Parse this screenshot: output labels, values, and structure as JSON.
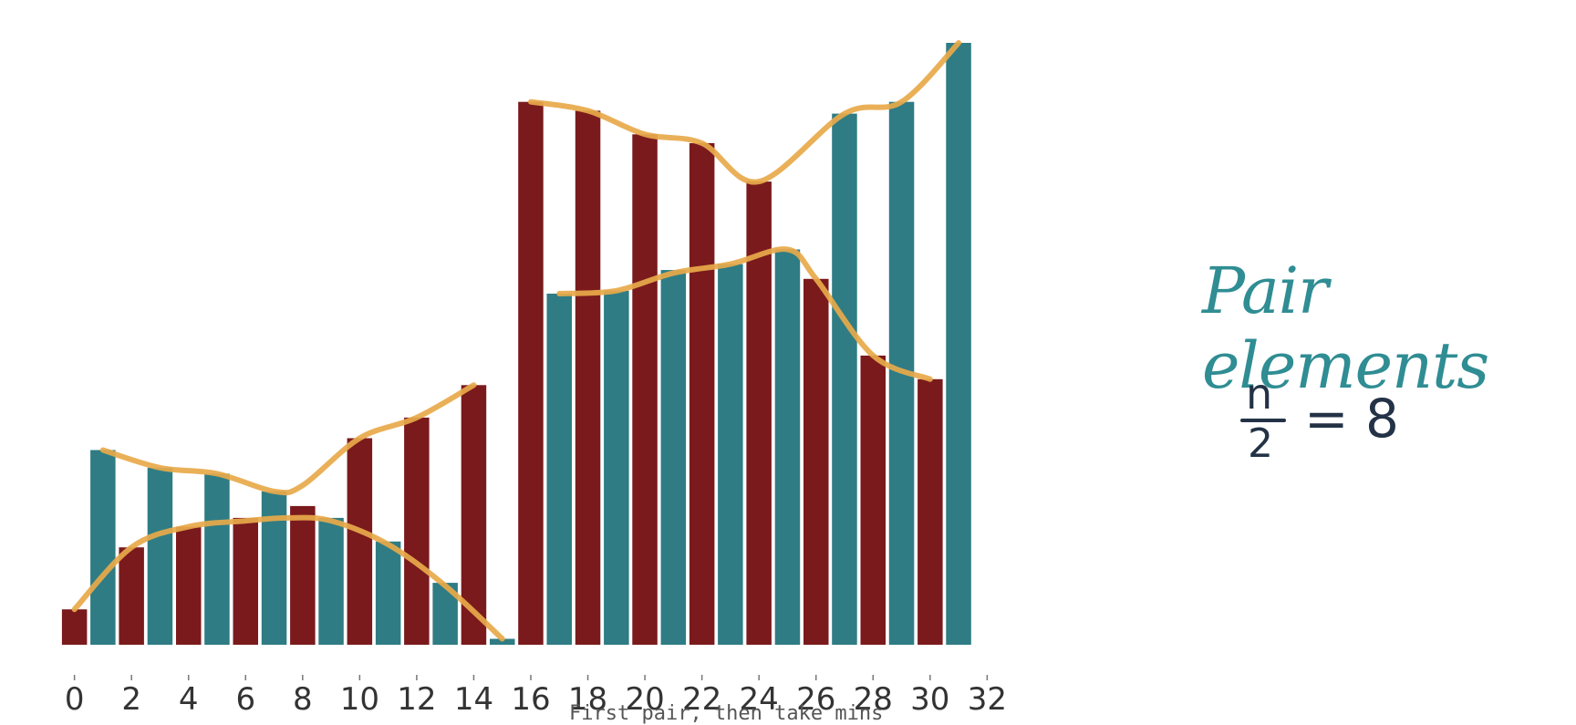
{
  "chart_data": {
    "type": "bar",
    "x": [
      0,
      1,
      2,
      3,
      4,
      5,
      6,
      7,
      8,
      9,
      10,
      11,
      12,
      13,
      14,
      15,
      16,
      17,
      18,
      19,
      20,
      21,
      22,
      23,
      24,
      25,
      26,
      27,
      28,
      29,
      30,
      31
    ],
    "values": [
      6,
      33,
      16.5,
      30,
      20,
      29,
      21.5,
      26,
      23.5,
      21.5,
      35,
      17.5,
      38.5,
      10.5,
      44,
      1,
      92,
      59.5,
      90.5,
      60,
      86.5,
      63.5,
      85,
      64.5,
      78.5,
      67,
      62,
      90,
      49,
      92,
      45,
      102
    ],
    "bar_colors": [
      "#7a1a1c",
      "#2f7c84",
      "#7a1a1c",
      "#2f7c84",
      "#7a1a1c",
      "#2f7c84",
      "#7a1a1c",
      "#2f7c84",
      "#7a1a1c",
      "#2f7c84",
      "#7a1a1c",
      "#2f7c84",
      "#7a1a1c",
      "#2f7c84",
      "#7a1a1c",
      "#2f7c84",
      "#7a1a1c",
      "#2f7c84",
      "#7a1a1c",
      "#2f7c84",
      "#7a1a1c",
      "#2f7c84",
      "#7a1a1c",
      "#2f7c84",
      "#7a1a1c",
      "#2f7c84",
      "#7a1a1c",
      "#2f7c84",
      "#7a1a1c",
      "#2f7c84",
      "#7a1a1c",
      "#2f7c84"
    ],
    "xticks": [
      0,
      2,
      4,
      6,
      8,
      10,
      12,
      14,
      16,
      18,
      20,
      22,
      24,
      26,
      28,
      30,
      32
    ],
    "xlim": [
      -0.5,
      32.5
    ],
    "ylim": [
      0,
      102
    ],
    "grid": false,
    "annotation_curves": [
      {
        "color": "#e8a94a",
        "points": [
          [
            1,
            33
          ],
          [
            3,
            30
          ],
          [
            5,
            29
          ],
          [
            7,
            26
          ],
          [
            8,
            27
          ],
          [
            10,
            35
          ],
          [
            12,
            38.5
          ],
          [
            14,
            44
          ]
        ]
      },
      {
        "color": "#e8a94a",
        "points": [
          [
            0,
            6
          ],
          [
            2,
            16.5
          ],
          [
            4,
            20
          ],
          [
            6,
            21
          ],
          [
            7.5,
            21.5
          ],
          [
            9,
            21
          ],
          [
            11,
            17
          ],
          [
            13,
            10
          ],
          [
            15,
            1
          ]
        ]
      },
      {
        "color": "#e8a94a",
        "points": [
          [
            16,
            92
          ],
          [
            18,
            90.5
          ],
          [
            20,
            86.5
          ],
          [
            22,
            85
          ],
          [
            24,
            78.5
          ],
          [
            27,
            90
          ],
          [
            29,
            92
          ],
          [
            31,
            102
          ]
        ]
      },
      {
        "color": "#e8a94a",
        "points": [
          [
            17,
            59.5
          ],
          [
            19,
            60
          ],
          [
            21,
            63
          ],
          [
            23,
            64.5
          ],
          [
            25,
            67
          ],
          [
            26,
            62
          ],
          [
            28,
            49
          ],
          [
            30,
            45
          ]
        ]
      }
    ],
    "accent_colors": {
      "red": "#7a1a1c",
      "teal": "#2f7c84",
      "annotation": "#e8a94a"
    }
  },
  "note": {
    "title": "Pair elements",
    "numerator": "n",
    "denominator": "2",
    "equation_rhs": "= 8"
  },
  "caption": "First pair, then take mins"
}
